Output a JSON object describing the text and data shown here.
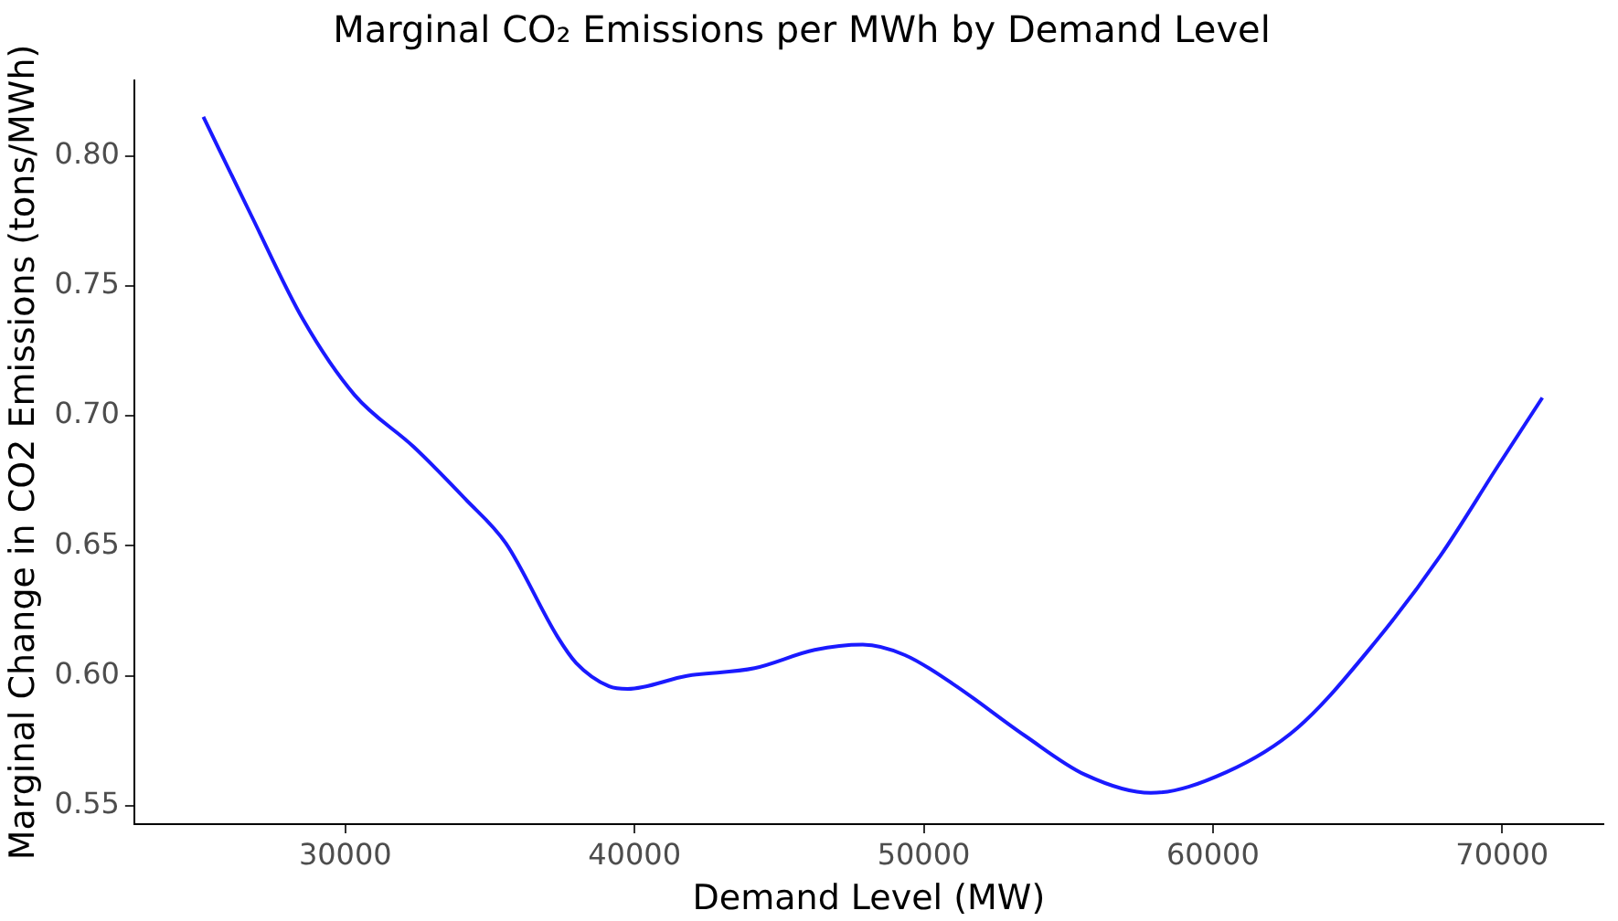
{
  "chart_data": {
    "type": "line",
    "title": "Marginal CO₂ Emissions per MWh by Demand Level",
    "xlabel": "Demand Level (MW)",
    "ylabel": "Marginal Change in CO2 Emissions (tons/MWh)",
    "x": [
      25090,
      26750,
      28540,
      30320,
      32370,
      34150,
      35550,
      37340,
      37980,
      39120,
      39760,
      41810,
      44150,
      46230,
      47890,
      49350,
      51000,
      53500,
      55580,
      57850,
      60460,
      62920,
      65610,
      67850,
      69870,
      71390
    ],
    "series": [
      {
        "color": "#1a1aff",
        "values": [
          0.815,
          0.777,
          0.737,
          0.708,
          0.688,
          0.668,
          0.651,
          0.615,
          0.605,
          0.596,
          0.595,
          0.6,
          0.603,
          0.61,
          0.612,
          0.608,
          0.597,
          0.577,
          0.562,
          0.555,
          0.563,
          0.58,
          0.613,
          0.646,
          0.681,
          0.707
        ]
      }
    ],
    "xlim": [
      22700,
      73500
    ],
    "xticks": [
      30000,
      40000,
      50000,
      60000,
      70000
    ],
    "ylim": [
      0.543,
      0.829
    ],
    "yticks": [
      0.55,
      {
        "value": 0.6,
        "label": "0.60"
      },
      0.65,
      {
        "value": 0.7,
        "label": "0.70"
      },
      0.75,
      {
        "value": 0.8,
        "label": "0.80"
      }
    ],
    "marker": "none",
    "line_style": "solid"
  }
}
